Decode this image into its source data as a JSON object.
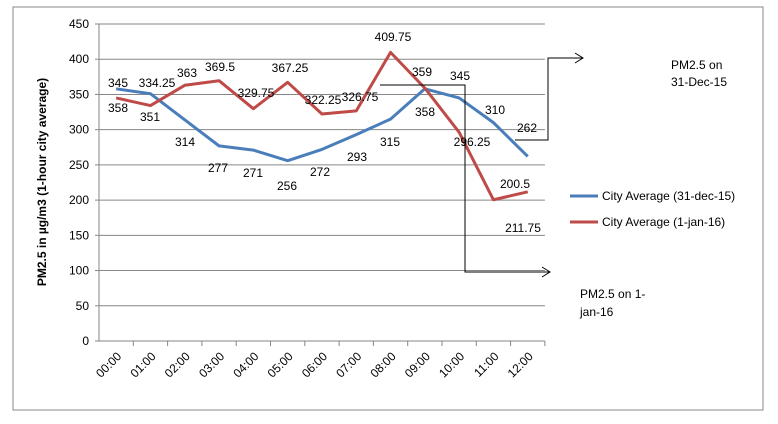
{
  "chart_data": {
    "type": "line",
    "title": "",
    "xlabel": "",
    "ylabel": "PM2.5 in µg/m3 (1-hour city average)",
    "ylim": [
      0,
      450
    ],
    "yticks": [
      "0",
      "50",
      "100",
      "150",
      "200",
      "250",
      "300",
      "350",
      "400",
      "450"
    ],
    "grid": true,
    "legend": "right",
    "categories": [
      "00:00",
      "01:00",
      "02:00",
      "03:00",
      "04:00",
      "05:00",
      "06:00",
      "07:00",
      "08:00",
      "09:00",
      "10:00",
      "11:00",
      "12:00"
    ],
    "series": [
      {
        "name": "City Average (31-dec-15)",
        "color": "#4a7ebb",
        "values": [
          358,
          351,
          314,
          277,
          271,
          256,
          272,
          293,
          315,
          358,
          345,
          310,
          262
        ],
        "labels": [
          "358",
          "351",
          "314",
          "277",
          "271",
          "256",
          "272",
          "293",
          "315",
          "358",
          "345",
          "310",
          "262"
        ]
      },
      {
        "name": "City Average (1-jan-16)",
        "color": "#be4b48",
        "values": [
          345,
          334.25,
          363,
          369.5,
          329.75,
          367.25,
          322.25,
          326.75,
          409.75,
          359,
          296.25,
          200.5,
          211.75
        ],
        "labels": [
          "345",
          "334.25",
          "363",
          "369.5",
          "329.75",
          "367.25",
          "322.25",
          "326.75",
          "409.75",
          "359",
          "296.25",
          "200.5",
          "211.75"
        ]
      }
    ],
    "annotations": [
      "PM2.5 on 31-Dec-15",
      "PM2.5 on 1-jan-16"
    ]
  }
}
